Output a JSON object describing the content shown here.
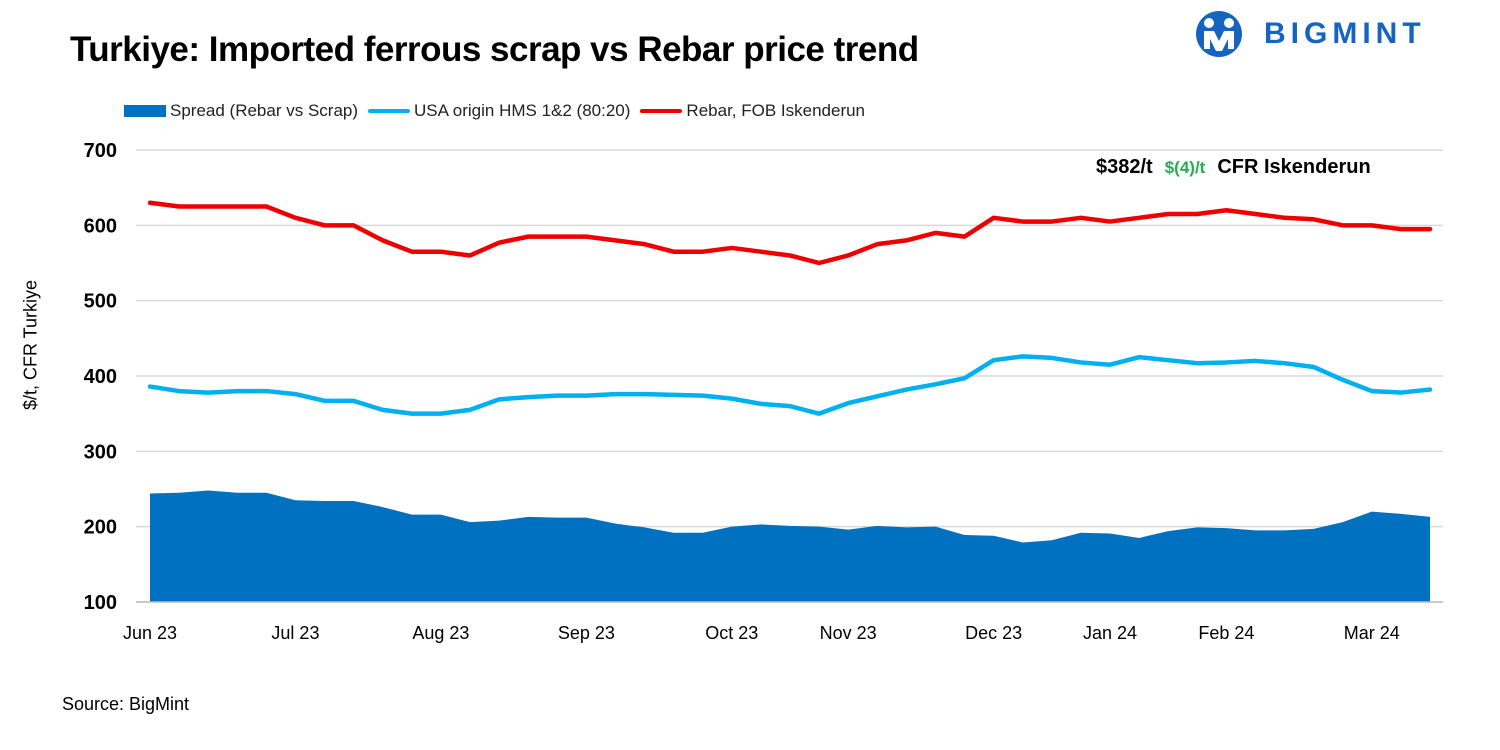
{
  "title": "Turkiye: Imported ferrous scrap vs Rebar price trend",
  "logo": {
    "text": "BIGMINT",
    "icon": "bigmint-logo-icon",
    "color": "#1565c0"
  },
  "source": "Source: BigMint",
  "annotation": {
    "price": "$382/t",
    "change": "$(4)/t",
    "change_color": "#21b04b",
    "location": "CFR Iskenderun"
  },
  "chart_data": {
    "type": "line",
    "ylabel": "$/t, CFR Turkiye",
    "ylim": [
      100,
      700
    ],
    "yticks": [
      100,
      200,
      300,
      400,
      500,
      600,
      700
    ],
    "grid": true,
    "legend_position": "top-left",
    "x_tick_labels": [
      {
        "label": "Jun 23",
        "index": 0
      },
      {
        "label": "Jul 23",
        "index": 5
      },
      {
        "label": "Aug 23",
        "index": 10
      },
      {
        "label": "Sep 23",
        "index": 15
      },
      {
        "label": "Oct 23",
        "index": 20
      },
      {
        "label": "Nov 23",
        "index": 24
      },
      {
        "label": "Dec 23",
        "index": 29
      },
      {
        "label": "Jan 24",
        "index": 33
      },
      {
        "label": "Feb 24",
        "index": 37
      },
      {
        "label": "Mar 24",
        "index": 42
      }
    ],
    "series": [
      {
        "name": "Spread (Rebar vs Scrap)",
        "kind": "area",
        "color": "#0070c0",
        "values": [
          244,
          245,
          248,
          245,
          245,
          235,
          234,
          234,
          226,
          216,
          216,
          206,
          208,
          213,
          212,
          212,
          204,
          199,
          192,
          192,
          200,
          203,
          201,
          200,
          196,
          201,
          199,
          200,
          189,
          188,
          179,
          182,
          192,
          191,
          185,
          194,
          199,
          198,
          195,
          195,
          197,
          206,
          220,
          217,
          213
        ]
      },
      {
        "name": "USA origin HMS 1&2 (80:20)",
        "kind": "line",
        "color": "#00b0f0",
        "values": [
          386,
          380,
          378,
          380,
          380,
          376,
          367,
          367,
          355,
          350,
          350,
          355,
          369,
          372,
          374,
          374,
          376,
          376,
          375,
          374,
          370,
          363,
          360,
          350,
          364,
          373,
          382,
          389,
          397,
          421,
          426,
          424,
          418,
          415,
          425,
          421,
          417,
          418,
          420,
          417,
          412,
          395,
          380,
          378,
          382
        ]
      },
      {
        "name": "Rebar, FOB Iskenderun",
        "kind": "line",
        "color": "#ee0000",
        "values": [
          630,
          625,
          625,
          625,
          625,
          610,
          600,
          600,
          580,
          565,
          565,
          560,
          577,
          585,
          585,
          585,
          580,
          575,
          565,
          565,
          570,
          565,
          560,
          550,
          560,
          575,
          580,
          590,
          585,
          610,
          605,
          605,
          610,
          605,
          610,
          615,
          615,
          620,
          615,
          610,
          608,
          600,
          600,
          595,
          595
        ]
      }
    ]
  }
}
